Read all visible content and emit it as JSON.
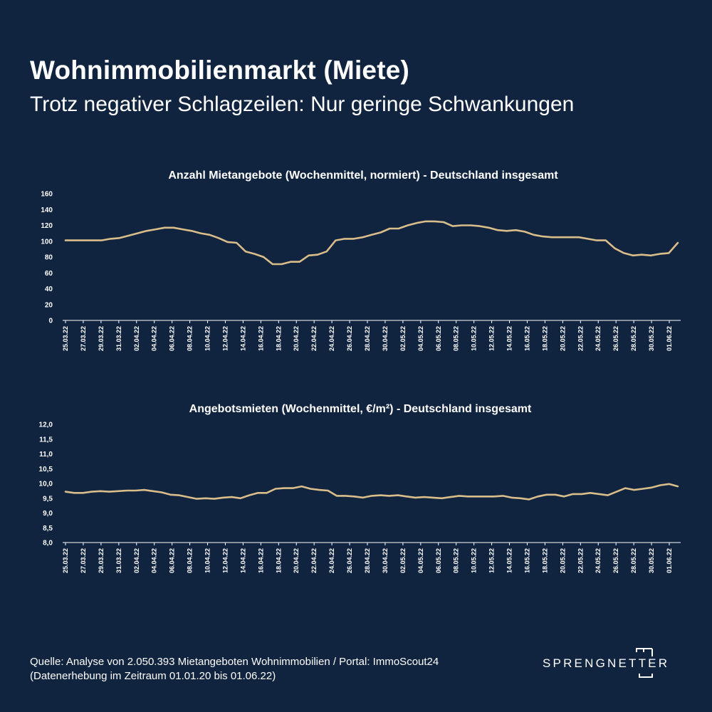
{
  "header": {
    "title": "Wohnimmobilienmarkt (Miete)",
    "subtitle": "Trotz negativer Schlagzeilen: Nur geringe Schwankungen"
  },
  "colors": {
    "background": "#10233f",
    "line": "#d9bd8a",
    "text": "#ffffff"
  },
  "chart_data": [
    {
      "type": "line",
      "title": "Anzahl Mietangebote (Wochenmittel, normiert) - Deutschland insgesamt",
      "xlabel": "",
      "ylabel": "",
      "ylim": [
        0,
        160
      ],
      "yticks": [
        "0",
        "20",
        "40",
        "60",
        "80",
        "100",
        "120",
        "140",
        "160"
      ],
      "grid": false,
      "x_tick_labels": [
        "25.03.22",
        "27.03.22",
        "29.03.22",
        "31.03.22",
        "02.04.22",
        "04.04.22",
        "06.04.22",
        "08.04.22",
        "10.04.22",
        "12.04.22",
        "14.04.22",
        "16.04.22",
        "18.04.22",
        "20.04.22",
        "22.04.22",
        "24.04.22",
        "26.04.22",
        "28.04.22",
        "30.04.22",
        "02.05.22",
        "04.05.22",
        "06.05.22",
        "08.05.22",
        "10.05.22",
        "12.05.22",
        "14.05.22",
        "16.05.22",
        "18.05.22",
        "20.05.22",
        "22.05.22",
        "24.05.22",
        "26.05.22",
        "28.05.22",
        "30.05.22",
        "01.06.22"
      ],
      "series": [
        {
          "values": [
            101,
            101,
            101,
            101,
            101,
            103,
            104,
            107,
            110,
            113,
            115,
            117,
            117,
            115,
            113,
            110,
            108,
            104,
            99,
            98,
            87,
            84,
            80,
            71,
            71,
            74,
            74,
            82,
            83,
            87,
            101,
            103,
            103,
            105,
            108,
            111,
            116,
            116,
            120,
            123,
            125,
            125,
            124,
            119,
            120,
            120,
            119,
            117,
            114,
            113,
            114,
            112,
            108,
            106,
            105,
            105,
            105,
            105,
            103,
            101,
            101,
            91,
            85,
            82,
            83,
            82,
            84,
            85,
            98
          ]
        }
      ]
    },
    {
      "type": "line",
      "title": "Angebotsmieten (Wochenmittel, €/m²) - Deutschland insgesamt",
      "xlabel": "",
      "ylabel": "",
      "ylim": [
        8.0,
        12.0
      ],
      "yticks": [
        "8,0",
        "8,5",
        "9,0",
        "9,5",
        "10,0",
        "10,5",
        "11,0",
        "11,5",
        "12,0"
      ],
      "grid": false,
      "x_tick_labels": [
        "25.03.22",
        "27.03.22",
        "29.03.22",
        "31.03.22",
        "02.04.22",
        "04.04.22",
        "06.04.22",
        "08.04.22",
        "10.04.22",
        "12.04.22",
        "14.04.22",
        "16.04.22",
        "18.04.22",
        "20.04.22",
        "22.04.22",
        "24.04.22",
        "26.04.22",
        "28.04.22",
        "30.04.22",
        "02.05.22",
        "04.05.22",
        "06.05.22",
        "08.05.22",
        "10.05.22",
        "12.05.22",
        "14.05.22",
        "16.05.22",
        "18.05.22",
        "20.05.22",
        "22.05.22",
        "24.05.22",
        "26.05.22",
        "28.05.22",
        "30.05.22",
        "01.06.22"
      ],
      "series": [
        {
          "values": [
            9.72,
            9.68,
            9.68,
            9.72,
            9.74,
            9.72,
            9.74,
            9.76,
            9.76,
            9.78,
            9.74,
            9.7,
            9.62,
            9.6,
            9.54,
            9.48,
            9.5,
            9.48,
            9.52,
            9.54,
            9.5,
            9.6,
            9.68,
            9.68,
            9.82,
            9.84,
            9.84,
            9.9,
            9.82,
            9.78,
            9.76,
            9.58,
            9.58,
            9.56,
            9.52,
            9.58,
            9.6,
            9.58,
            9.6,
            9.56,
            9.52,
            9.54,
            9.52,
            9.5,
            9.54,
            9.58,
            9.56,
            9.56,
            9.56,
            9.56,
            9.58,
            9.52,
            9.5,
            9.46,
            9.56,
            9.62,
            9.62,
            9.56,
            9.64,
            9.64,
            9.68,
            9.64,
            9.6,
            9.72,
            9.84,
            9.78,
            9.82,
            9.86,
            9.94,
            9.98,
            9.9
          ]
        }
      ]
    }
  ],
  "footer": {
    "source_line1": "Quelle: Analyse von 2.050.393 Mietangeboten Wohnimmobilien / Portal: ImmoScout24",
    "source_line2": "(Datenerhebung im Zeitraum  01.01.20 bis 01.06.22)"
  },
  "logo": {
    "text": "SPRENGNETTER",
    "icon": "sprengnetter-logo-mark"
  }
}
